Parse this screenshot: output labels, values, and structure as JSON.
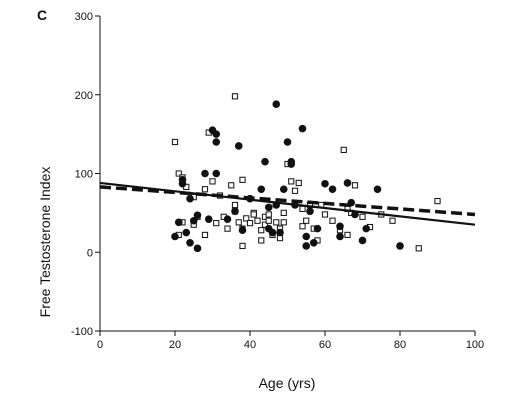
{
  "chart_data": {
    "type": "scatter",
    "panel_label": "C",
    "xlabel": "Age (yrs)",
    "ylabel": "Free Testosterone Index",
    "xlim": [
      0,
      100
    ],
    "ylim": [
      -100,
      300
    ],
    "x_ticks": [
      0,
      20,
      40,
      60,
      80,
      100
    ],
    "y_ticks": [
      -100,
      0,
      100,
      200,
      300
    ],
    "grid": false,
    "legend": "none",
    "series": [
      {
        "marker": "filled-circle",
        "color": "#111111",
        "points": [
          [
            20,
            20
          ],
          [
            21,
            38
          ],
          [
            22,
            92
          ],
          [
            22,
            87
          ],
          [
            23,
            25
          ],
          [
            24,
            68
          ],
          [
            24,
            12
          ],
          [
            25,
            40
          ],
          [
            26,
            47
          ],
          [
            26,
            5
          ],
          [
            28,
            100
          ],
          [
            29,
            42
          ],
          [
            30,
            155
          ],
          [
            31,
            150
          ],
          [
            31,
            140
          ],
          [
            31,
            100
          ],
          [
            34,
            42
          ],
          [
            36,
            52
          ],
          [
            37,
            135
          ],
          [
            38,
            28
          ],
          [
            40,
            68
          ],
          [
            43,
            80
          ],
          [
            44,
            115
          ],
          [
            45,
            57
          ],
          [
            45,
            30
          ],
          [
            46,
            25
          ],
          [
            47,
            60
          ],
          [
            47,
            188
          ],
          [
            48,
            25
          ],
          [
            49,
            80
          ],
          [
            50,
            140
          ],
          [
            51,
            115
          ],
          [
            51,
            112
          ],
          [
            52,
            60
          ],
          [
            54,
            157
          ],
          [
            55,
            20
          ],
          [
            55,
            8
          ],
          [
            56,
            52
          ],
          [
            57,
            12
          ],
          [
            58,
            30
          ],
          [
            60,
            87
          ],
          [
            62,
            80
          ],
          [
            64,
            33
          ],
          [
            64,
            20
          ],
          [
            66,
            88
          ],
          [
            67,
            63
          ],
          [
            68,
            48
          ],
          [
            70,
            15
          ],
          [
            71,
            30
          ],
          [
            74,
            80
          ],
          [
            80,
            8
          ]
        ]
      },
      {
        "marker": "open-square",
        "color": "#111111",
        "points": [
          [
            20,
            140
          ],
          [
            21,
            100
          ],
          [
            21,
            22
          ],
          [
            22,
            38
          ],
          [
            22,
            95
          ],
          [
            23,
            83
          ],
          [
            25,
            35
          ],
          [
            25,
            70
          ],
          [
            26,
            45
          ],
          [
            28,
            22
          ],
          [
            28,
            80
          ],
          [
            29,
            152
          ],
          [
            30,
            90
          ],
          [
            31,
            37
          ],
          [
            32,
            72
          ],
          [
            33,
            45
          ],
          [
            34,
            30
          ],
          [
            35,
            85
          ],
          [
            36,
            198
          ],
          [
            36,
            60
          ],
          [
            36,
            52
          ],
          [
            37,
            38
          ],
          [
            38,
            30
          ],
          [
            38,
            92
          ],
          [
            38,
            8
          ],
          [
            39,
            43
          ],
          [
            40,
            37
          ],
          [
            41,
            50
          ],
          [
            41,
            48
          ],
          [
            42,
            40
          ],
          [
            43,
            28
          ],
          [
            43,
            15
          ],
          [
            44,
            45
          ],
          [
            44,
            35
          ],
          [
            45,
            48
          ],
          [
            45,
            40
          ],
          [
            46,
            22
          ],
          [
            47,
            38
          ],
          [
            48,
            30
          ],
          [
            48,
            18
          ],
          [
            49,
            50
          ],
          [
            49,
            38
          ],
          [
            50,
            112
          ],
          [
            51,
            90
          ],
          [
            52,
            78
          ],
          [
            53,
            88
          ],
          [
            54,
            55
          ],
          [
            54,
            33
          ],
          [
            55,
            40
          ],
          [
            56,
            60
          ],
          [
            57,
            30
          ],
          [
            58,
            15
          ],
          [
            59,
            60
          ],
          [
            60,
            48
          ],
          [
            62,
            40
          ],
          [
            64,
            28
          ],
          [
            65,
            130
          ],
          [
            66,
            55
          ],
          [
            66,
            22
          ],
          [
            67,
            50
          ],
          [
            68,
            85
          ],
          [
            70,
            45
          ],
          [
            72,
            32
          ],
          [
            75,
            48
          ],
          [
            78,
            40
          ],
          [
            85,
            5
          ],
          [
            90,
            65
          ]
        ]
      }
    ],
    "fit_lines": [
      {
        "style": "solid",
        "color": "#111111",
        "x": [
          0,
          100
        ],
        "y": [
          88,
          35
        ]
      },
      {
        "style": "dashed",
        "color": "#111111",
        "x": [
          0,
          100
        ],
        "y": [
          83,
          48
        ]
      }
    ]
  }
}
